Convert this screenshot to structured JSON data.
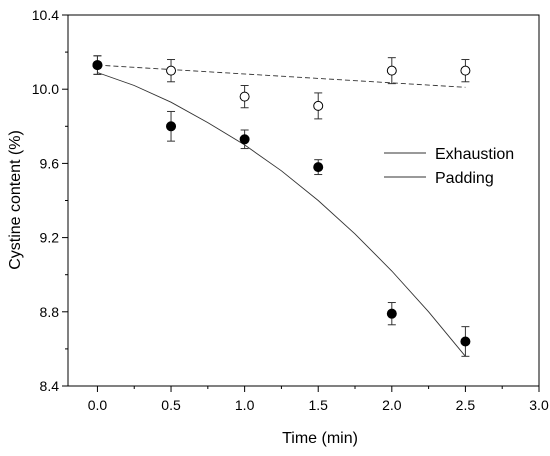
{
  "chart_data": {
    "type": "scatter",
    "title": "",
    "xlabel": "Time (min)",
    "ylabel": "Cystine content (%)",
    "xlim": [
      -0.2,
      3.0
    ],
    "ylim": [
      8.4,
      10.4
    ],
    "xticks": [
      0.0,
      0.5,
      1.0,
      1.5,
      2.0,
      2.5,
      3.0
    ],
    "xtick_labels": [
      "0.0",
      "0.5",
      "1.0",
      "1.5",
      "2.0",
      "2.5",
      "3.0"
    ],
    "yticks": [
      8.4,
      8.8,
      9.2,
      9.6,
      10.0,
      10.4
    ],
    "ytick_labels": [
      "8.4",
      "8.8",
      "9.2",
      "9.6",
      "10.0",
      "10.4"
    ],
    "grid": false,
    "legend_position": "right",
    "series": [
      {
        "name": "Exhaustion",
        "marker": "open-circle",
        "line_style": "dashed",
        "x": [
          0.0,
          0.5,
          1.0,
          1.5,
          2.0,
          2.5
        ],
        "y": [
          10.13,
          10.1,
          9.96,
          9.91,
          10.1,
          10.1
        ],
        "error": [
          0.05,
          0.06,
          0.06,
          0.07,
          0.07,
          0.06
        ],
        "fit_x": [
          0.0,
          2.5
        ],
        "fit_y": [
          10.13,
          10.01
        ]
      },
      {
        "name": "Padding",
        "marker": "filled-circle",
        "line_style": "solid",
        "x": [
          0.0,
          0.5,
          1.0,
          1.5,
          2.0,
          2.5
        ],
        "y": [
          10.13,
          9.8,
          9.73,
          9.58,
          8.79,
          8.64
        ],
        "error": [
          0.05,
          0.08,
          0.05,
          0.04,
          0.06,
          0.08
        ],
        "fit_x": [
          0.0,
          0.25,
          0.5,
          0.75,
          1.0,
          1.25,
          1.5,
          1.75,
          2.0,
          2.25,
          2.5
        ],
        "fit_y": [
          10.09,
          10.02,
          9.93,
          9.82,
          9.7,
          9.56,
          9.4,
          9.22,
          9.02,
          8.8,
          8.56
        ]
      }
    ]
  }
}
